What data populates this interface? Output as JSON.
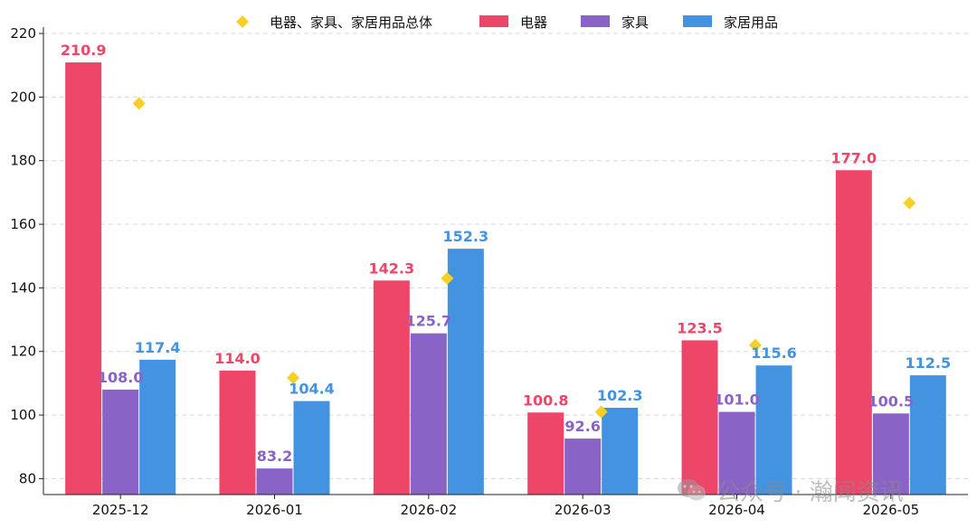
{
  "chart_data": {
    "type": "bar",
    "categories": [
      "2025-12",
      "2026-01",
      "2026-02",
      "2026-03",
      "2026-04",
      "2026-05"
    ],
    "series": [
      {
        "name": "电器",
        "values": [
          210.9,
          114.0,
          142.3,
          100.8,
          123.5,
          177.0
        ],
        "color": "#ee4669"
      },
      {
        "name": "家具",
        "values": [
          108.0,
          83.2,
          125.7,
          92.6,
          101.0,
          100.5
        ],
        "color": "#8a63c6"
      },
      {
        "name": "家居用品",
        "values": [
          117.4,
          104.4,
          152.3,
          102.3,
          115.6,
          112.5
        ],
        "color": "#4393e0"
      }
    ],
    "overall": {
      "name": "电器、家具、家居用品总体",
      "values": [
        198.0,
        111.7,
        143.0,
        101.0,
        122.0,
        166.7
      ],
      "color": "#f7cf25",
      "marker": "diamond"
    },
    "ylim": [
      75,
      222
    ],
    "yticks": [
      80,
      100,
      120,
      140,
      160,
      180,
      200,
      220
    ],
    "grid": true,
    "legend_position": "top-center",
    "title": "",
    "xlabel": "",
    "ylabel": ""
  },
  "watermark": {
    "text": "公众号 · 瀚闻资讯",
    "icon": "wechat-icon"
  }
}
